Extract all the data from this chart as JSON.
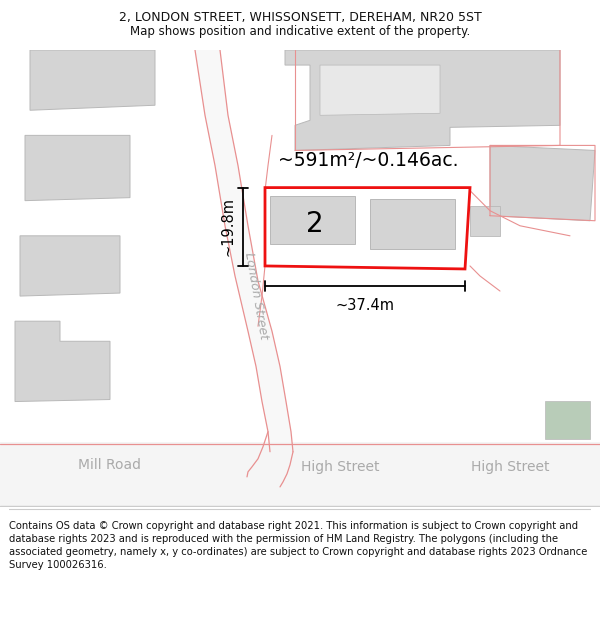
{
  "title_line1": "2, LONDON STREET, WHISSONSETT, DEREHAM, NR20 5ST",
  "title_line2": "Map shows position and indicative extent of the property.",
  "footer_text": "Contains OS data © Crown copyright and database right 2021. This information is subject to Crown copyright and database rights 2023 and is reproduced with the permission of HM Land Registry. The polygons (including the associated geometry, namely x, y co-ordinates) are subject to Crown copyright and database rights 2023 Ordnance Survey 100026316.",
  "area_label": "~591m²/~0.146ac.",
  "width_label": "~37.4m",
  "height_label": "~19.8m",
  "plot_number": "2",
  "street_label_london": "London Street",
  "street_label_high1": "High Street",
  "street_label_high2": "High Street",
  "street_label_mill": "Mill Road",
  "map_bg": "#ffffff",
  "building_color": "#d4d4d4",
  "building_edge": "#b8b8b8",
  "road_boundary_color": "#e89090",
  "highlight_color": "#ee1111",
  "green_patch": "#b8ccb8",
  "title_fontsize": 9,
  "footer_fontsize": 7.2,
  "street_label_color": "#aaaaaa"
}
